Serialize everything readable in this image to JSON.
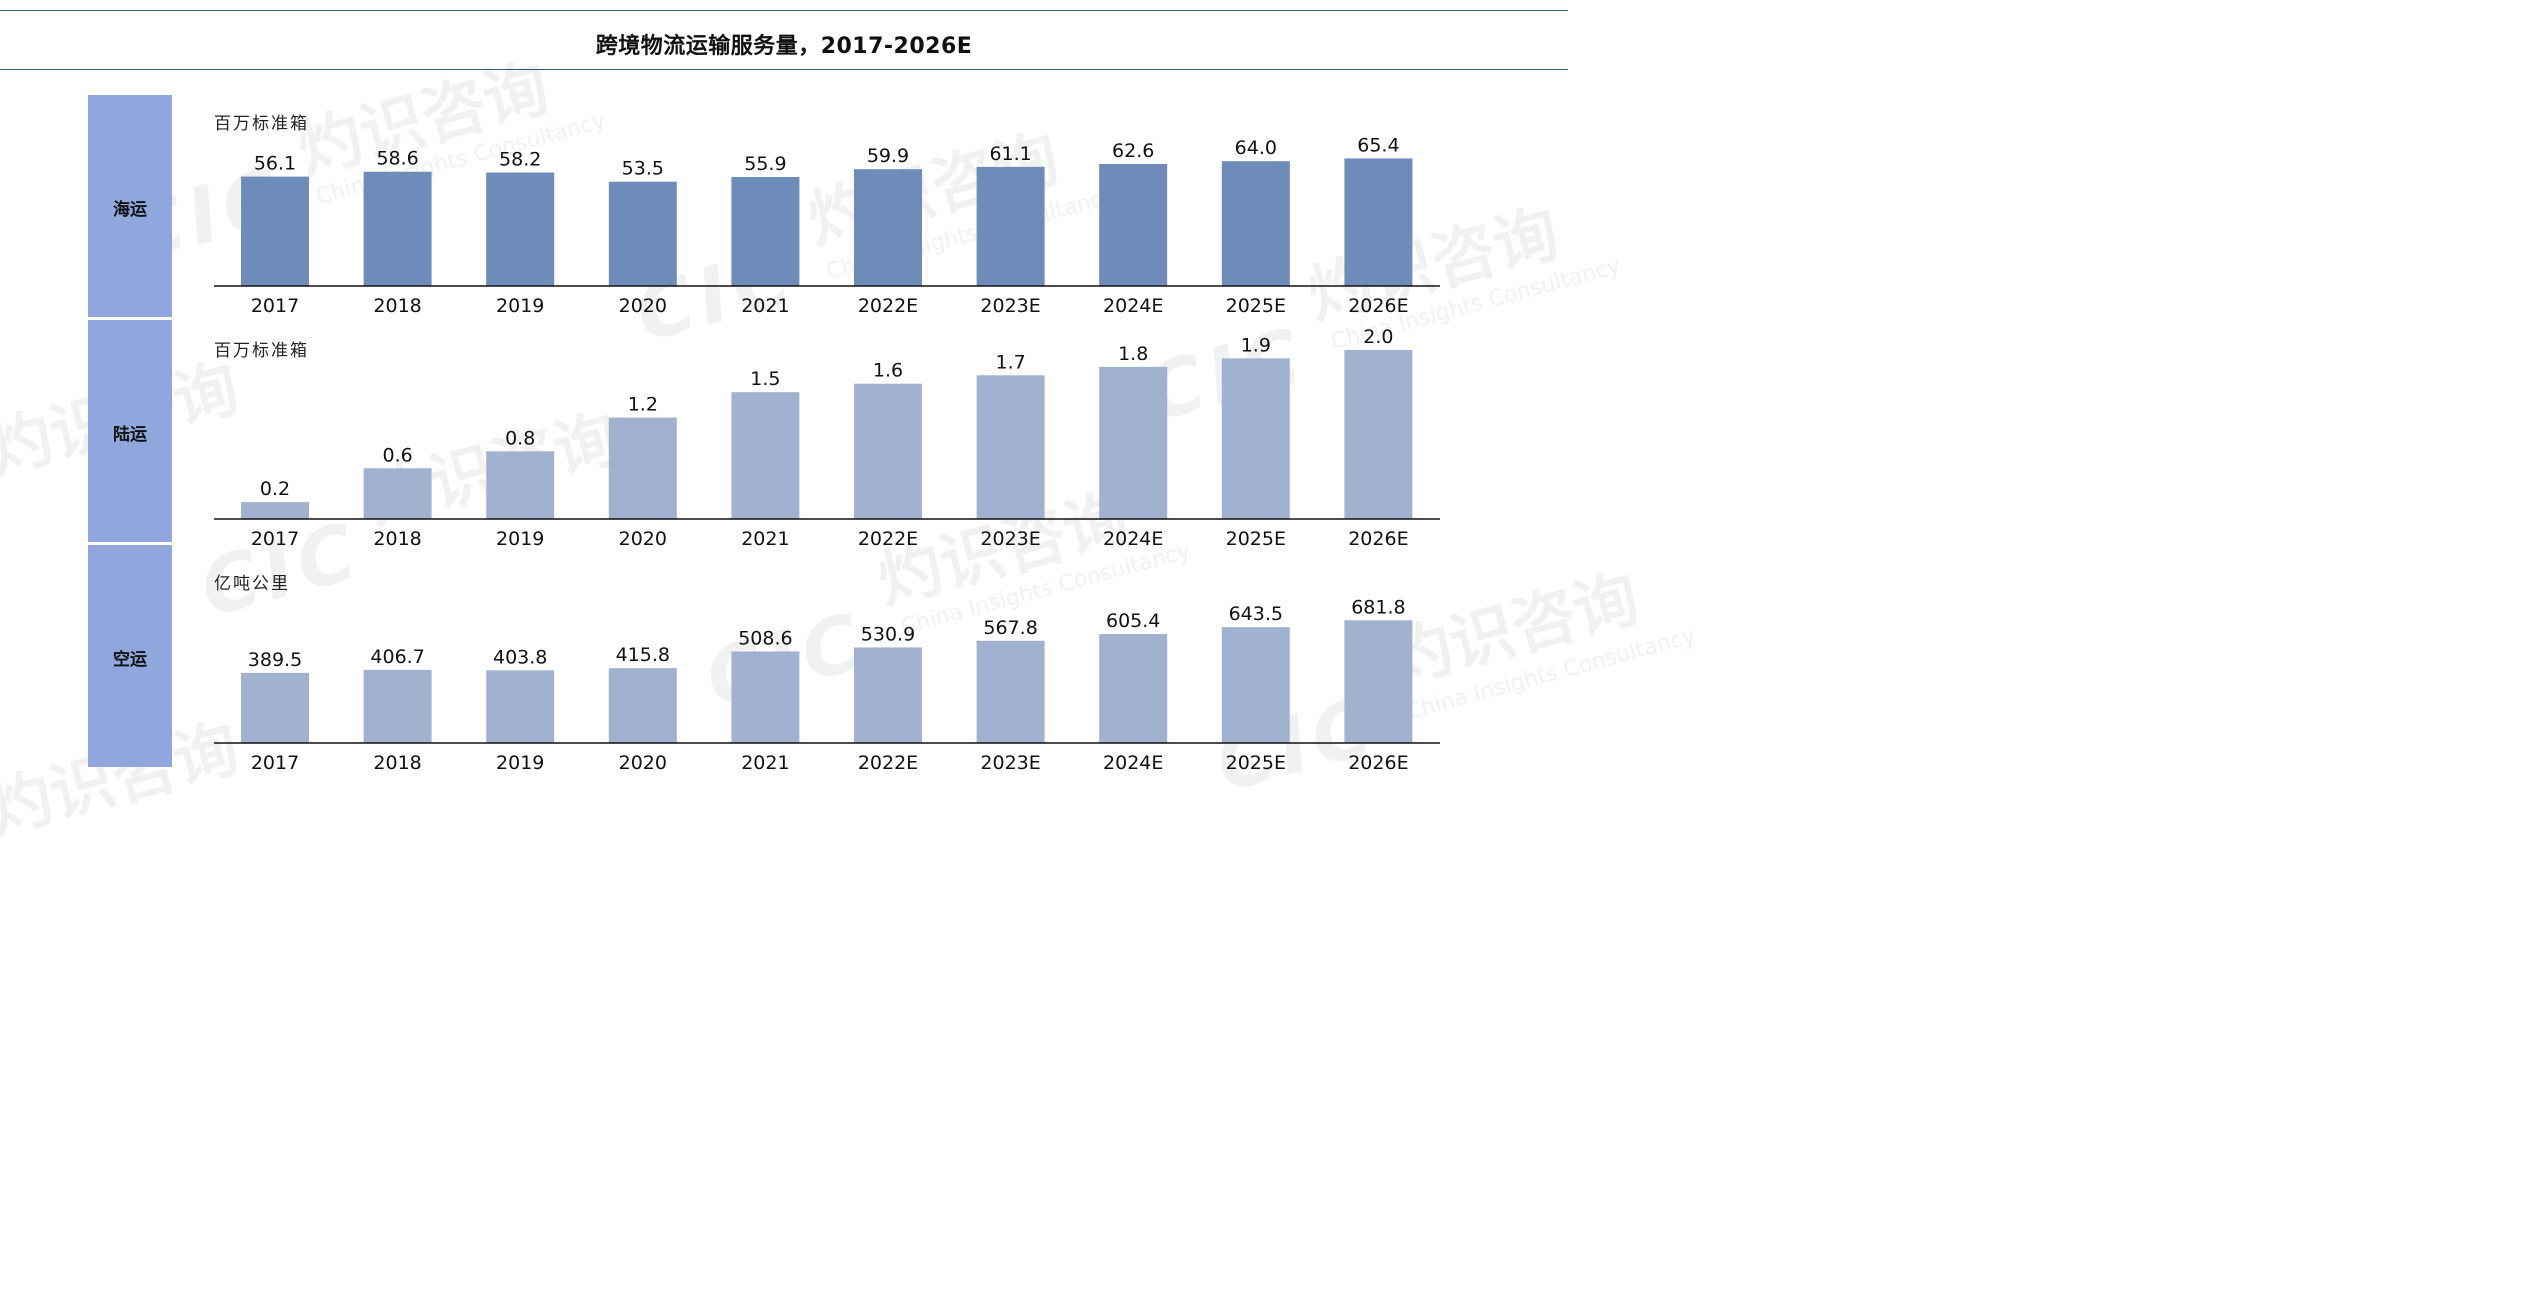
{
  "page": {
    "title": "跨境物流运输服务量，2017-2026E"
  },
  "watermark": {
    "logo": "CIC",
    "cn": "灼识咨询",
    "en": "China Insights Consultancy"
  },
  "colors": {
    "sea_bar": "#6e8cba",
    "land_bar": "#a1b2d0",
    "air_bar": "#a1b2d0",
    "side_box": "#8fa7dc",
    "axis": "#111111",
    "rule": "#3f5570"
  },
  "chart_data": [
    {
      "type": "bar",
      "row_label": "海运",
      "unit": "百万标准箱",
      "categories": [
        "2017",
        "2018",
        "2019",
        "2020",
        "2021",
        "2022E",
        "2023E",
        "2024E",
        "2025E",
        "2026E"
      ],
      "values": [
        56.1,
        58.6,
        58.2,
        53.5,
        55.9,
        59.9,
        61.1,
        62.6,
        64.0,
        65.4
      ],
      "value_labels": [
        "56.1",
        "58.6",
        "58.2",
        "53.5",
        "55.9",
        "59.9",
        "61.1",
        "62.6",
        "64.0",
        "65.4"
      ],
      "color": "#6e8cba",
      "ylim": [
        0,
        80
      ],
      "grid": false
    },
    {
      "type": "bar",
      "row_label": "陆运",
      "unit": "百万标准箱",
      "categories": [
        "2017",
        "2018",
        "2019",
        "2020",
        "2021",
        "2022E",
        "2023E",
        "2024E",
        "2025E",
        "2026E"
      ],
      "values": [
        0.2,
        0.6,
        0.8,
        1.2,
        1.5,
        1.6,
        1.7,
        1.8,
        1.9,
        2.0
      ],
      "value_labels": [
        "0.2",
        "0.6",
        "0.8",
        "1.2",
        "1.5",
        "1.6",
        "1.7",
        "1.8",
        "1.9",
        "2.0"
      ],
      "color": "#a1b2d0",
      "ylim": [
        0,
        2.2
      ],
      "grid": false
    },
    {
      "type": "bar",
      "row_label": "空运",
      "unit": "亿吨公里",
      "categories": [
        "2017",
        "2018",
        "2019",
        "2020",
        "2021",
        "2022E",
        "2023E",
        "2024E",
        "2025E",
        "2026E"
      ],
      "values": [
        389.5,
        406.7,
        403.8,
        415.8,
        508.6,
        530.9,
        567.8,
        605.4,
        643.5,
        681.8
      ],
      "value_labels": [
        "389.5",
        "406.7",
        "403.8",
        "415.8",
        "508.6",
        "530.9",
        "567.8",
        "605.4",
        "643.5",
        "681.8"
      ],
      "color": "#a1b2d0",
      "ylim": [
        0,
        1000
      ],
      "grid": false
    }
  ]
}
